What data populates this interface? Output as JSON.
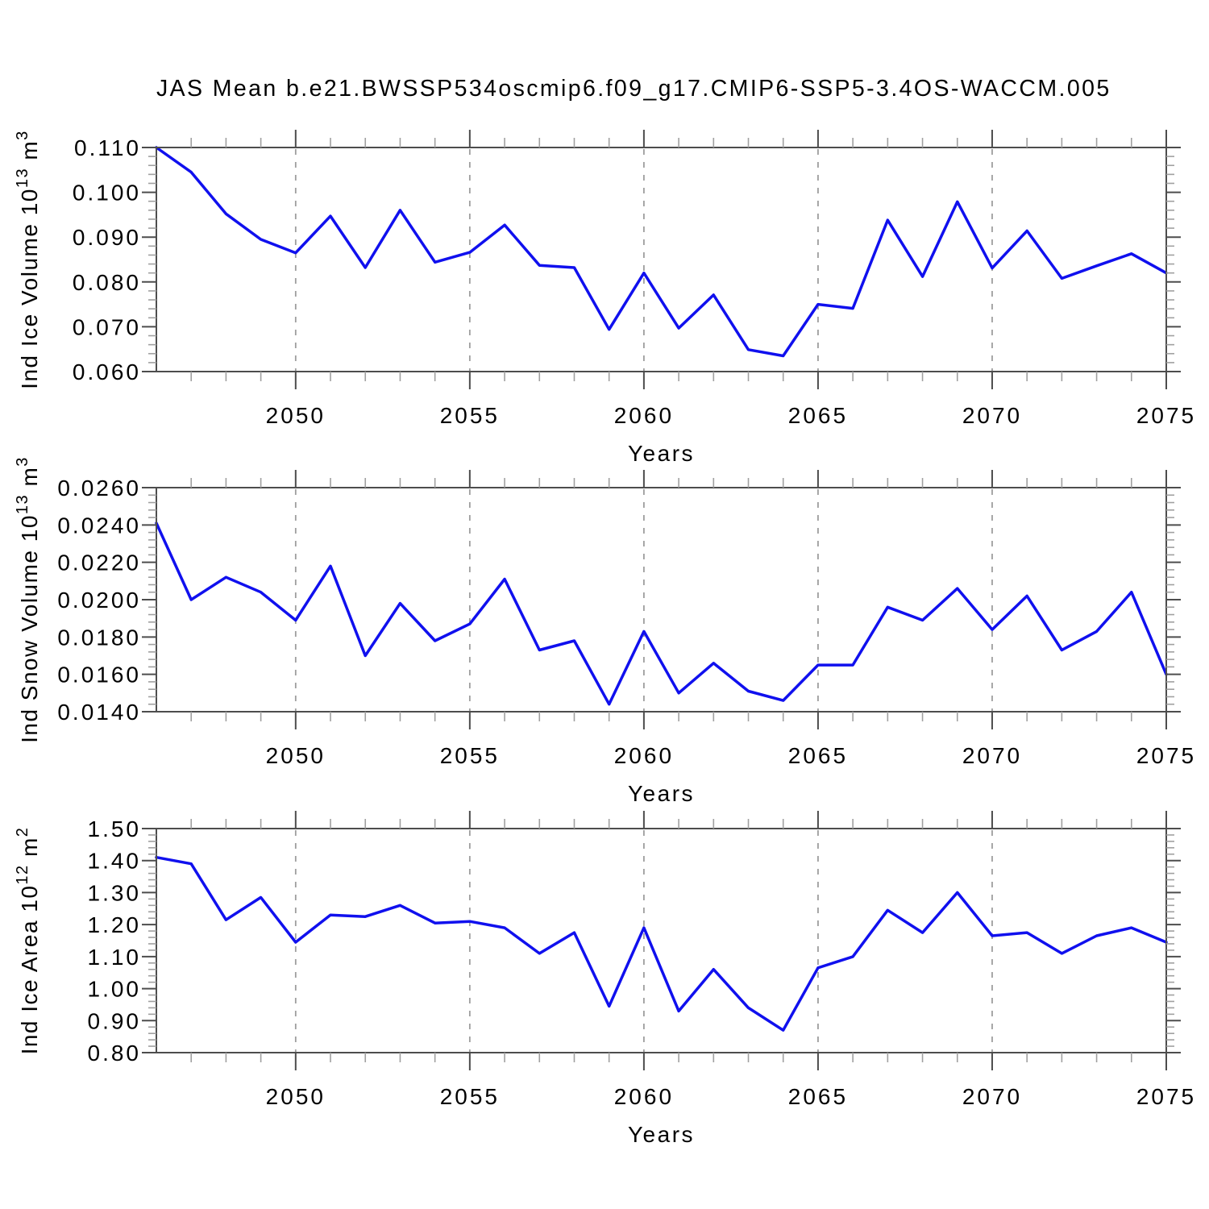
{
  "chart_data": {
    "type": "line",
    "title": "JAS Mean b.e21.BWSSP534oscmip6.f09_g17.CMIP6-SSP5-3.4OS-WACCM.005",
    "x_label": "Years",
    "x_range": [
      2046,
      2075
    ],
    "x": [
      2046,
      2047,
      2048,
      2049,
      2050,
      2051,
      2052,
      2053,
      2054,
      2055,
      2056,
      2057,
      2058,
      2059,
      2060,
      2061,
      2062,
      2063,
      2064,
      2065,
      2066,
      2067,
      2068,
      2069,
      2070,
      2071,
      2072,
      2073,
      2074,
      2075
    ],
    "x_tick_years": [
      2050,
      2055,
      2060,
      2065,
      2070,
      2075
    ],
    "x_tick_labels": [
      "2050",
      "2055",
      "2060",
      "2065",
      "2070",
      "2075"
    ],
    "grid_years": [
      2050,
      2055,
      2060,
      2065,
      2070
    ],
    "line_color": "#1010ee",
    "grid_on": true,
    "legend": "none",
    "panels": [
      {
        "name": "ice-volume",
        "ylabel": "Ind Ice Volume 10^13 m^3",
        "ylabel_parts": [
          {
            "t": "Ind Ice Volume 10",
            "sup": false
          },
          {
            "t": "13",
            "sup": true
          },
          {
            "t": " m",
            "sup": false
          },
          {
            "t": "3",
            "sup": true
          }
        ],
        "ylim": [
          0.06,
          0.11
        ],
        "y_tick_labels": [
          "0.110",
          "0.100",
          "0.090",
          "0.080",
          "0.070",
          "0.060"
        ],
        "y_minor_step": 0.002,
        "values": [
          0.11,
          0.1045,
          0.0952,
          0.0895,
          0.0865,
          0.0947,
          0.0832,
          0.096,
          0.0844,
          0.0866,
          0.0927,
          0.0837,
          0.0832,
          0.0694,
          0.082,
          0.0697,
          0.0771,
          0.0649,
          0.0635,
          0.075,
          0.0741,
          0.0938,
          0.0812,
          0.0979,
          0.0831,
          0.0914,
          0.0808,
          0.0836,
          0.0863,
          0.082
        ]
      },
      {
        "name": "snow-volume",
        "ylabel": "Ind Snow Volume 10^13 m^3",
        "ylabel_parts": [
          {
            "t": "Ind Snow Volume 10",
            "sup": false
          },
          {
            "t": "13",
            "sup": true
          },
          {
            "t": " m",
            "sup": false
          },
          {
            "t": "3",
            "sup": true
          }
        ],
        "ylim": [
          0.014,
          0.026
        ],
        "y_tick_labels": [
          "0.0260",
          "0.0240",
          "0.0220",
          "0.0200",
          "0.0180",
          "0.0160",
          "0.0140"
        ],
        "y_minor_step": 0.0004,
        "values": [
          0.0241,
          0.02,
          0.0212,
          0.0204,
          0.0189,
          0.0218,
          0.017,
          0.0198,
          0.0178,
          0.0187,
          0.0211,
          0.0173,
          0.0178,
          0.0144,
          0.0183,
          0.015,
          0.0166,
          0.0151,
          0.0146,
          0.0165,
          0.0165,
          0.0196,
          0.0189,
          0.0206,
          0.0184,
          0.0202,
          0.0173,
          0.0183,
          0.0204,
          0.016
        ]
      },
      {
        "name": "ice-area",
        "ylabel": "Ind Ice Area 10^12 m^2",
        "ylabel_parts": [
          {
            "t": "Ind Ice Area 10",
            "sup": false
          },
          {
            "t": "12",
            "sup": true
          },
          {
            "t": " m",
            "sup": false
          },
          {
            "t": "2",
            "sup": true
          }
        ],
        "ylim": [
          0.8,
          1.5
        ],
        "y_tick_labels": [
          "1.50",
          "1.40",
          "1.30",
          "1.20",
          "1.10",
          "1.00",
          "0.90",
          "0.80"
        ],
        "y_minor_step": 0.02,
        "values": [
          1.41,
          1.39,
          1.215,
          1.285,
          1.145,
          1.23,
          1.225,
          1.26,
          1.205,
          1.21,
          1.19,
          1.11,
          1.175,
          0.945,
          1.19,
          0.93,
          1.06,
          0.94,
          0.87,
          1.065,
          1.1,
          1.245,
          1.175,
          1.3,
          1.165,
          1.175,
          1.11,
          1.165,
          1.19,
          1.145
        ]
      }
    ]
  }
}
